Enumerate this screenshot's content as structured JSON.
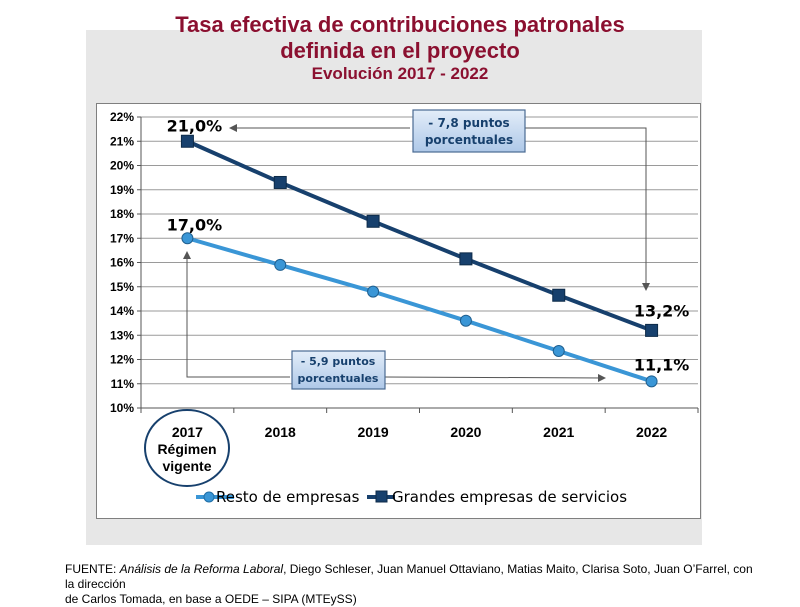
{
  "title": {
    "line1": "Tasa efectiva de contribuciones patronales",
    "line2": "definida en el proyecto",
    "line3": "Evolución 2017 - 2022"
  },
  "chart_data": {
    "type": "line",
    "x": [
      "2017",
      "2018",
      "2019",
      "2020",
      "2021",
      "2022"
    ],
    "x_extra_label": [
      "Régimen",
      "vigente"
    ],
    "ylim": [
      0.1,
      0.22
    ],
    "yticks": [
      "10%",
      "11%",
      "12%",
      "13%",
      "14%",
      "15%",
      "16%",
      "17%",
      "18%",
      "19%",
      "20%",
      "21%",
      "22%"
    ],
    "grid": true,
    "legend_position": "bottom",
    "series": [
      {
        "name": "Resto de empresas",
        "values": [
          0.17,
          0.159,
          0.148,
          0.136,
          0.1235,
          0.111
        ],
        "color": "#3a96d6",
        "marker": "circle"
      },
      {
        "name": "Grandes empresas de servicios",
        "values": [
          0.21,
          0.193,
          0.177,
          0.1615,
          0.1465,
          0.132
        ],
        "color": "#17406d",
        "marker": "square"
      }
    ],
    "data_labels": [
      {
        "series": 1,
        "index": 0,
        "text": "21,0%"
      },
      {
        "series": 0,
        "index": 0,
        "text": "17,0%"
      },
      {
        "series": 1,
        "index": 5,
        "text": "13,2%"
      },
      {
        "series": 0,
        "index": 5,
        "text": "11,1%"
      }
    ],
    "annotations": [
      {
        "lines": [
          "- 7,8 puntos",
          "porcentuales"
        ]
      },
      {
        "lines": [
          "- 5,9 puntos",
          "porcentuales"
        ]
      }
    ]
  },
  "source": {
    "prefix": "FUENTE: ",
    "title": "Análisis de la Reforma Laboral",
    "rest1": ", Diego Schleser, Juan Manuel Ottaviano,  Matias Maito, Clarisa Soto, Juan O’Farrel, con la dirección",
    "line2": "de Carlos Tomada, en base a  OEDE – SIPA (MTEySS)"
  },
  "colors": {
    "title": "#8b1030",
    "series_light": "#3a96d6",
    "series_dark": "#17406d",
    "annotation_bg": "#c7daf0"
  }
}
